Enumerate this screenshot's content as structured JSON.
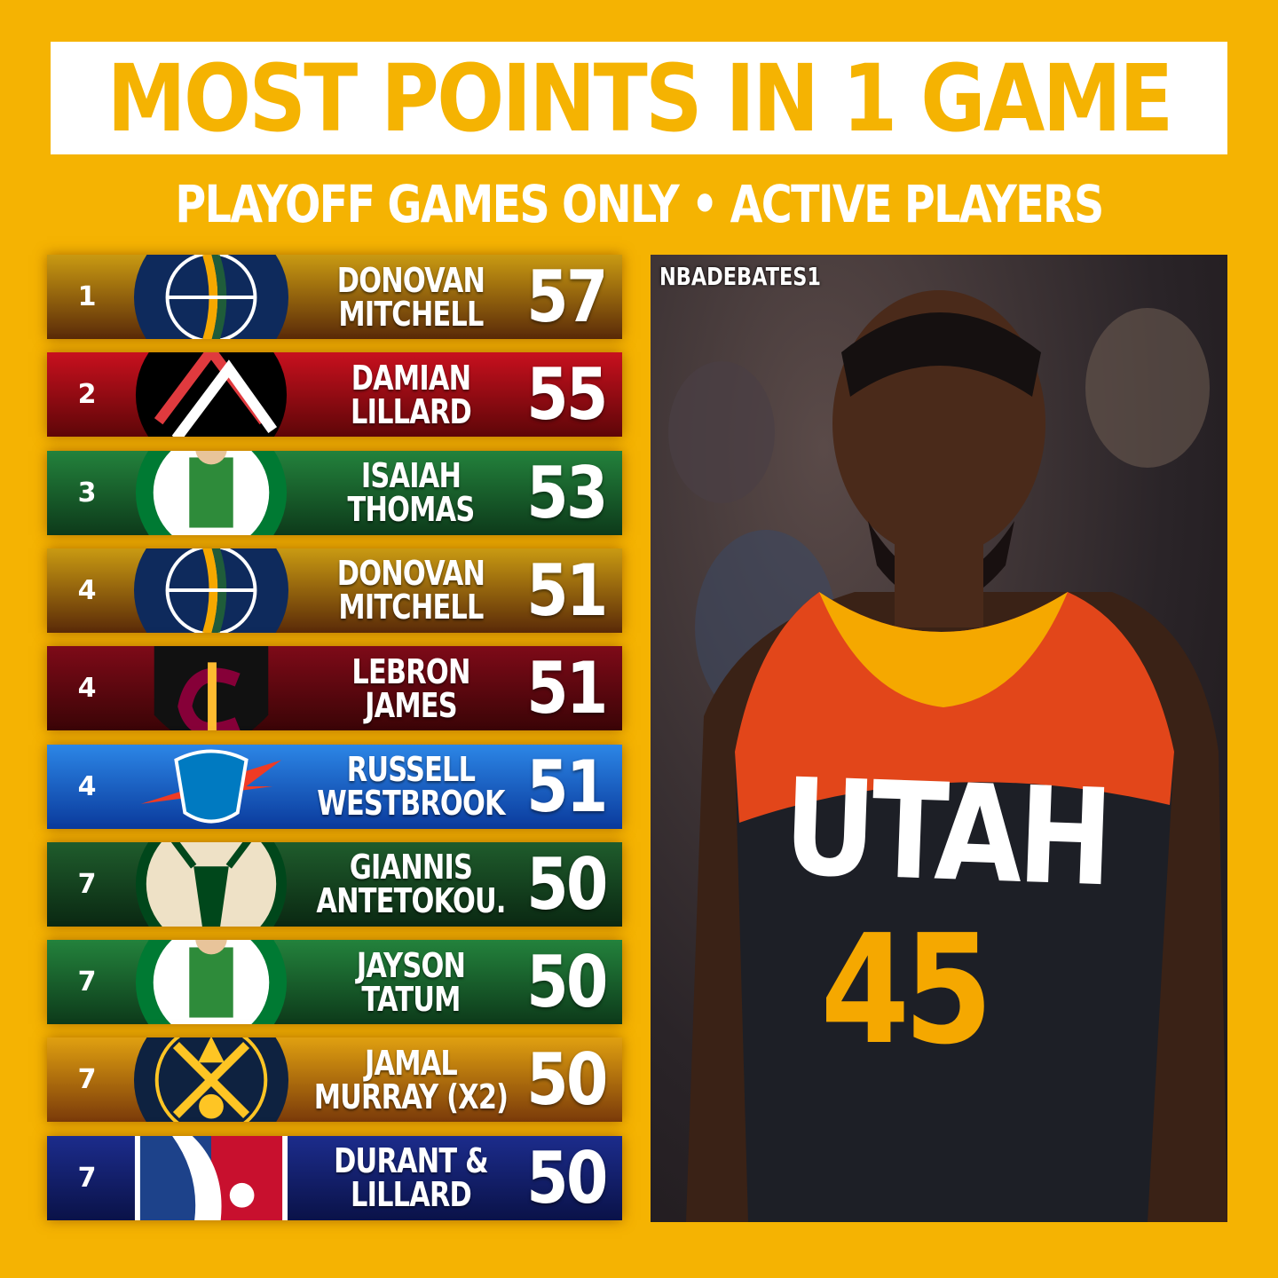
{
  "title": "MOST POINTS IN 1 GAME",
  "subtitle": "PLAYOFF GAMES ONLY • ACTIVE PLAYERS",
  "rows": [
    {
      "rank": "1",
      "name1": "DONOVAN",
      "name2": "MITCHELL",
      "points": "57",
      "team": "jazz",
      "colors": [
        "#C99A12",
        "#5A2A08"
      ]
    },
    {
      "rank": "2",
      "name1": "DAMIAN",
      "name2": "LILLARD",
      "points": "55",
      "team": "blazers",
      "colors": [
        "#C8101E",
        "#5E0608"
      ]
    },
    {
      "rank": "3",
      "name1": "ISAIAH",
      "name2": "THOMAS",
      "points": "53",
      "team": "celtics",
      "colors": [
        "#23823C",
        "#0D3A1A"
      ]
    },
    {
      "rank": "4",
      "name1": "DONOVAN",
      "name2": "MITCHELL",
      "points": "51",
      "team": "jazz",
      "colors": [
        "#C99A12",
        "#5A2A08"
      ]
    },
    {
      "rank": "4",
      "name1": "LEBRON",
      "name2": "JAMES",
      "points": "51",
      "team": "cavaliers",
      "colors": [
        "#7E0A18",
        "#3A0406"
      ]
    },
    {
      "rank": "4",
      "name1": "RUSSELL",
      "name2": "WESTBROOK",
      "points": "51",
      "team": "thunder",
      "colors": [
        "#2C86E6",
        "#0A3A9C"
      ]
    },
    {
      "rank": "7",
      "name1": "GIANNIS",
      "name2": "ANTETOKOU.",
      "points": "50",
      "team": "bucks",
      "colors": [
        "#1F5C2C",
        "#0A2812"
      ]
    },
    {
      "rank": "7",
      "name1": "JAYSON",
      "name2": "TATUM",
      "points": "50",
      "team": "celtics",
      "colors": [
        "#23823C",
        "#0D3A1A"
      ]
    },
    {
      "rank": "7",
      "name1": "JAMAL",
      "name2": "MURRAY (X2)",
      "points": "50",
      "team": "nuggets",
      "colors": [
        "#E0A010",
        "#7A3A0A"
      ]
    },
    {
      "rank": "7",
      "name1": "DURANT &",
      "name2": "LILLARD",
      "points": "50",
      "team": "nba",
      "colors": [
        "#1C2C8C",
        "#0A1248"
      ]
    }
  ],
  "photo": {
    "watermark": "NBADEBATES1",
    "jersey_text": "UTAH",
    "jersey_number": "45"
  }
}
